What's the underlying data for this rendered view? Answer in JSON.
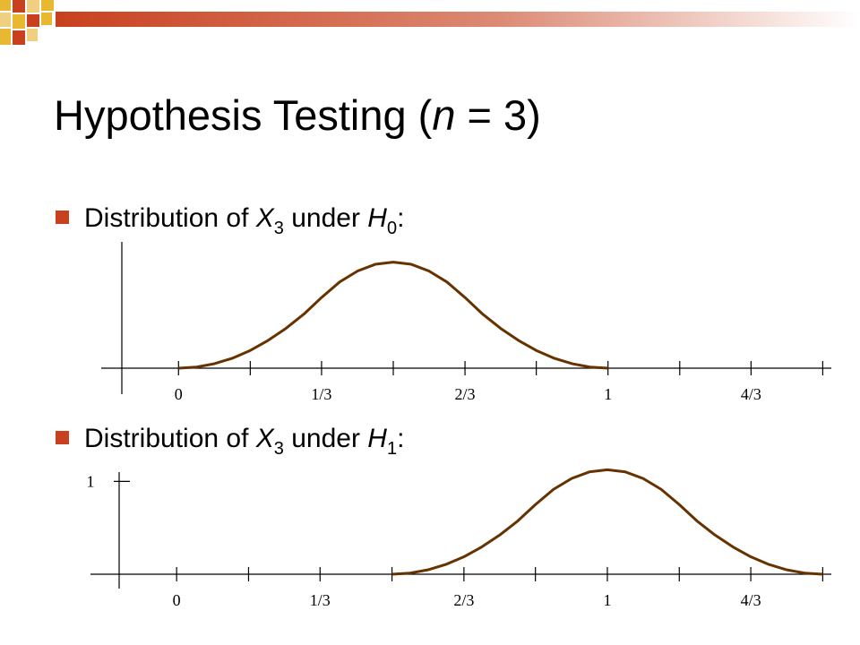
{
  "title": [
    "Hypothesis Testing (",
    "n",
    " = 3)"
  ],
  "bullets": [
    [
      "Distribution of ",
      "X",
      "3",
      " under ",
      "H",
      "0",
      ":"
    ],
    [
      "Distribution of ",
      "X",
      "3",
      " under ",
      "H",
      "1",
      ":"
    ]
  ],
  "chart_data": [
    {
      "type": "line",
      "color": "#663300",
      "x": [
        0,
        0.042,
        0.083,
        0.125,
        0.167,
        0.208,
        0.25,
        0.292,
        0.333,
        0.375,
        0.417,
        0.458,
        0.5,
        0.542,
        0.583,
        0.625,
        0.667,
        0.708,
        0.75,
        0.792,
        0.833,
        0.875,
        0.917,
        0.958,
        1
      ],
      "values": [
        0,
        0.012,
        0.047,
        0.105,
        0.188,
        0.293,
        0.422,
        0.574,
        0.75,
        0.914,
        1.031,
        1.102,
        1.125,
        1.102,
        1.031,
        0.914,
        0.75,
        0.574,
        0.422,
        0.293,
        0.188,
        0.105,
        0.047,
        0.012,
        0
      ],
      "xlim": [
        -0.18,
        1.52
      ],
      "ylim": [
        0,
        1.34
      ],
      "xticks": [
        0,
        {
          "value": 0.333,
          "label": "1/3"
        },
        {
          "value": 0.667,
          "label": "2/3"
        },
        1,
        {
          "value": 1.333,
          "label": "4/3"
        }
      ],
      "xminorticks": [
        0.167,
        0.5,
        0.833,
        1.167,
        1.5
      ]
    },
    {
      "type": "line",
      "color": "#663300",
      "x": [
        0.5,
        0.542,
        0.583,
        0.625,
        0.667,
        0.708,
        0.75,
        0.792,
        0.833,
        0.875,
        0.917,
        0.958,
        1,
        1.042,
        1.083,
        1.125,
        1.167,
        1.208,
        1.25,
        1.292,
        1.333,
        1.375,
        1.417,
        1.458,
        1.5
      ],
      "values": [
        0,
        0.012,
        0.047,
        0.105,
        0.188,
        0.293,
        0.422,
        0.574,
        0.75,
        0.914,
        1.031,
        1.102,
        1.125,
        1.102,
        1.031,
        0.914,
        0.75,
        0.574,
        0.422,
        0.293,
        0.188,
        0.105,
        0.047,
        0.012,
        0
      ],
      "xlim": [
        -0.2,
        1.52
      ],
      "ylim": [
        0,
        1.1
      ],
      "xticks": [
        0,
        {
          "value": 0.333,
          "label": "1/3"
        },
        {
          "value": 0.667,
          "label": "2/3"
        },
        1,
        {
          "value": 1.333,
          "label": "4/3"
        }
      ],
      "xminorticks": [
        0.167,
        0.5,
        0.833,
        1.167,
        1.5
      ],
      "yticks": [
        1
      ]
    }
  ]
}
